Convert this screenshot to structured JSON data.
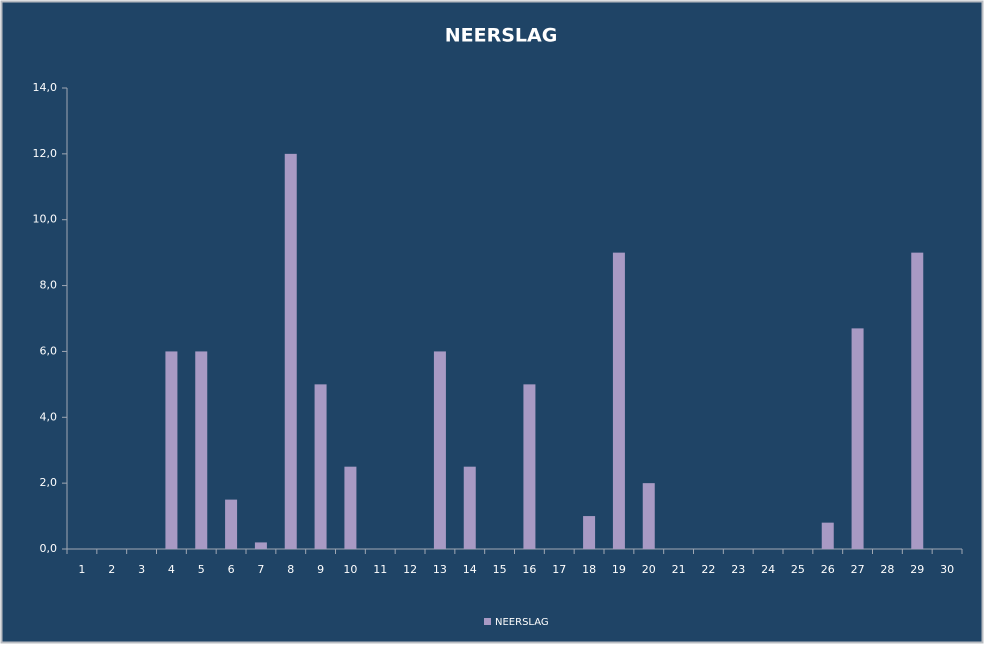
{
  "chart_data": {
    "type": "bar",
    "title": "NEERSLAG",
    "categories": [
      "1",
      "2",
      "3",
      "4",
      "5",
      "6",
      "7",
      "8",
      "9",
      "10",
      "11",
      "12",
      "13",
      "14",
      "15",
      "16",
      "17",
      "18",
      "19",
      "20",
      "21",
      "22",
      "23",
      "24",
      "25",
      "26",
      "27",
      "28",
      "29",
      "30"
    ],
    "series": [
      {
        "name": "NEERSLAG",
        "color": "#a89ac4",
        "values": [
          0,
          0,
          0,
          6,
          6,
          1.5,
          0.2,
          12,
          5,
          2.5,
          0,
          0,
          6,
          2.5,
          0,
          5,
          0,
          1,
          9,
          2,
          0,
          0,
          0,
          0,
          0,
          0.8,
          6.7,
          0,
          9,
          0
        ]
      }
    ],
    "ylim": [
      0,
      14
    ],
    "yticks": [
      {
        "value": 0,
        "label": "0,0"
      },
      {
        "value": 2,
        "label": "2,0"
      },
      {
        "value": 4,
        "label": "4,0"
      },
      {
        "value": 6,
        "label": "6,0"
      },
      {
        "value": 8,
        "label": "8,0"
      },
      {
        "value": 10,
        "label": "10,0"
      },
      {
        "value": 12,
        "label": "12,0"
      },
      {
        "value": 14,
        "label": "14,0"
      }
    ],
    "grid": false,
    "legend": "bottom"
  }
}
